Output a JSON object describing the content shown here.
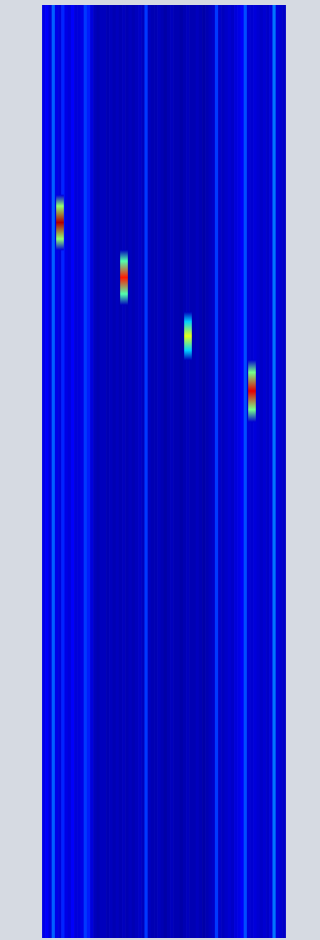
{
  "chart_data": {
    "type": "heatmap",
    "xlim": [
      -0.5,
      75.5
    ],
    "ylim": [
      0,
      933
    ],
    "zlim": [
      0,
      1
    ],
    "bin_levels": [
      0.1,
      0.12,
      0.09,
      0.22,
      0.1,
      0.09,
      0.16,
      0.1,
      0.09,
      0.12,
      0.09,
      0.09,
      0.1,
      0.18,
      0.15,
      0.09,
      0.06,
      0.05,
      0.06,
      0.06,
      0.05,
      0.06,
      0.05,
      0.06,
      0.05,
      0.06,
      0.05,
      0.06,
      0.05,
      0.06,
      0.07,
      0.06,
      0.18,
      0.06,
      0.05,
      0.05,
      0.06,
      0.05,
      0.04,
      0.05,
      0.06,
      0.05,
      0.05,
      0.04,
      0.05,
      0.06,
      0.05,
      0.05,
      0.06,
      0.05,
      0.04,
      0.05,
      0.06,
      0.07,
      0.18,
      0.07,
      0.06,
      0.07,
      0.08,
      0.07,
      0.09,
      0.1,
      0.12,
      0.2,
      0.09,
      0.08,
      0.09,
      0.08,
      0.07,
      0.08,
      0.07,
      0.09,
      0.24,
      0.09,
      0.08,
      0.07
    ],
    "signals": [
      {
        "bin": 5,
        "start": 190,
        "end": 245,
        "peak": 0.95
      },
      {
        "bin": 25,
        "start": 245,
        "end": 300,
        "peak": 0.85
      },
      {
        "bin": 45,
        "start": 307,
        "end": 355,
        "peak": 0.6
      },
      {
        "bin": 65,
        "start": 355,
        "end": 417,
        "peak": 0.9
      }
    ],
    "grid": false,
    "tick_labels": false
  }
}
